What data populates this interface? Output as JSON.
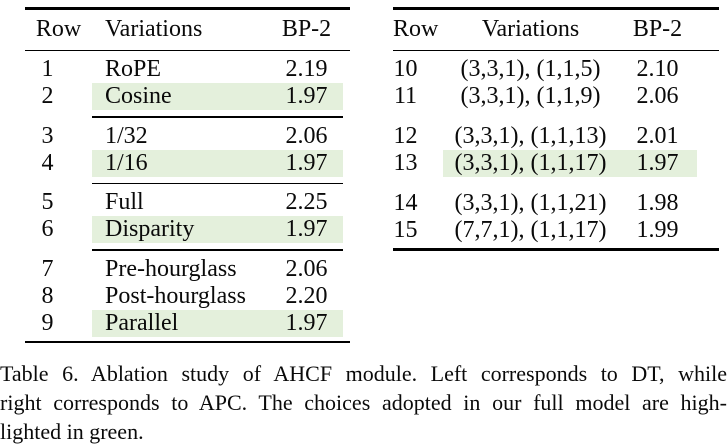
{
  "colors": {
    "highlight": "#e4f0dc",
    "rule": "#000000",
    "text": "#0a0a0a"
  },
  "left_table": {
    "header": {
      "row": "Row",
      "variations": "Variations",
      "bp2": "BP-2"
    },
    "rows": [
      {
        "num": "1",
        "variation": "RoPE",
        "bp2": "2.19",
        "highlight": false
      },
      {
        "num": "2",
        "variation": "Cosine",
        "bp2": "1.97",
        "highlight": true
      },
      {
        "num": "3",
        "variation": "1/32",
        "bp2": "2.06",
        "highlight": false
      },
      {
        "num": "4",
        "variation": "1/16",
        "bp2": "1.97",
        "highlight": true
      },
      {
        "num": "5",
        "variation": "Full",
        "bp2": "2.25",
        "highlight": false
      },
      {
        "num": "6",
        "variation": "Disparity",
        "bp2": "1.97",
        "highlight": true
      },
      {
        "num": "7",
        "variation": "Pre-hourglass",
        "bp2": "2.06",
        "highlight": false
      },
      {
        "num": "8",
        "variation": "Post-hourglass",
        "bp2": "2.20",
        "highlight": false
      },
      {
        "num": "9",
        "variation": "Parallel",
        "bp2": "1.97",
        "highlight": true
      }
    ]
  },
  "right_table": {
    "header": {
      "row": "Row",
      "variations": "Variations",
      "bp2": "BP-2"
    },
    "rows": [
      {
        "num": "10",
        "variation": "(3,3,1), (1,1,5)",
        "bp2": "2.10",
        "highlight": false
      },
      {
        "num": "11",
        "variation": "(3,3,1), (1,1,9)",
        "bp2": "2.06",
        "highlight": false
      },
      {
        "num": "12",
        "variation": "(3,3,1), (1,1,13)",
        "bp2": "2.01",
        "highlight": false
      },
      {
        "num": "13",
        "variation": "(3,3,1), (1,1,17)",
        "bp2": "1.97",
        "highlight": true
      },
      {
        "num": "14",
        "variation": "(3,3,1), (1,1,21)",
        "bp2": "1.98",
        "highlight": false
      },
      {
        "num": "15",
        "variation": "(7,7,1), (1,1,17)",
        "bp2": "1.99",
        "highlight": false
      }
    ]
  },
  "caption": {
    "lines": [
      "Table 6. Ablation study of AHCF module. Left corresponds to DT, while",
      "right corresponds to APC. The choices adopted in our full model are high-",
      "lighted in green."
    ]
  }
}
